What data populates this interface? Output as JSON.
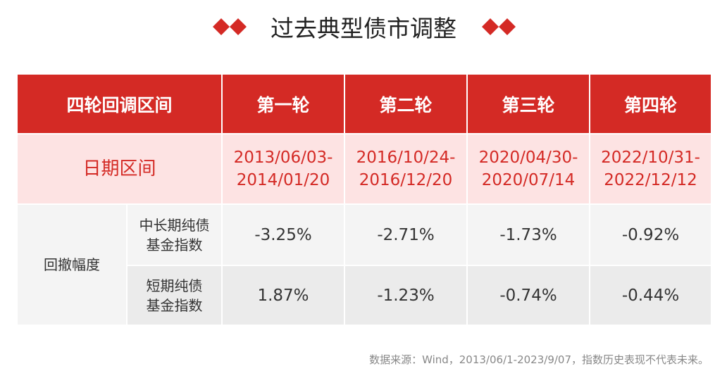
{
  "title": "过去典型债市调整",
  "table": {
    "header": [
      "四轮回调区间",
      "第一轮",
      "第二轮",
      "第三轮",
      "第四轮"
    ],
    "date_row": {
      "label": "日期区间",
      "ranges": [
        [
          "2013/06/03-",
          "2014/01/20"
        ],
        [
          "2016/10/24-",
          "2016/12/20"
        ],
        [
          "2020/04/30-",
          "2020/07/14"
        ],
        [
          "2022/10/31-",
          "2022/12/12"
        ]
      ]
    },
    "drawdown": {
      "label": "回撤幅度",
      "rows": [
        {
          "name": [
            "中长期纯债",
            "基金指数"
          ],
          "values": [
            "-3.25%",
            "-2.71%",
            "-1.73%",
            "-0.92%"
          ]
        },
        {
          "name": [
            "短期纯债",
            "基金指数"
          ],
          "values": [
            "1.87%",
            "-1.23%",
            "-0.74%",
            "-0.44%"
          ]
        }
      ]
    }
  },
  "source": "数据来源：Wind，2013/06/1-2023/9/07，指数历史表现不代表未来。"
}
